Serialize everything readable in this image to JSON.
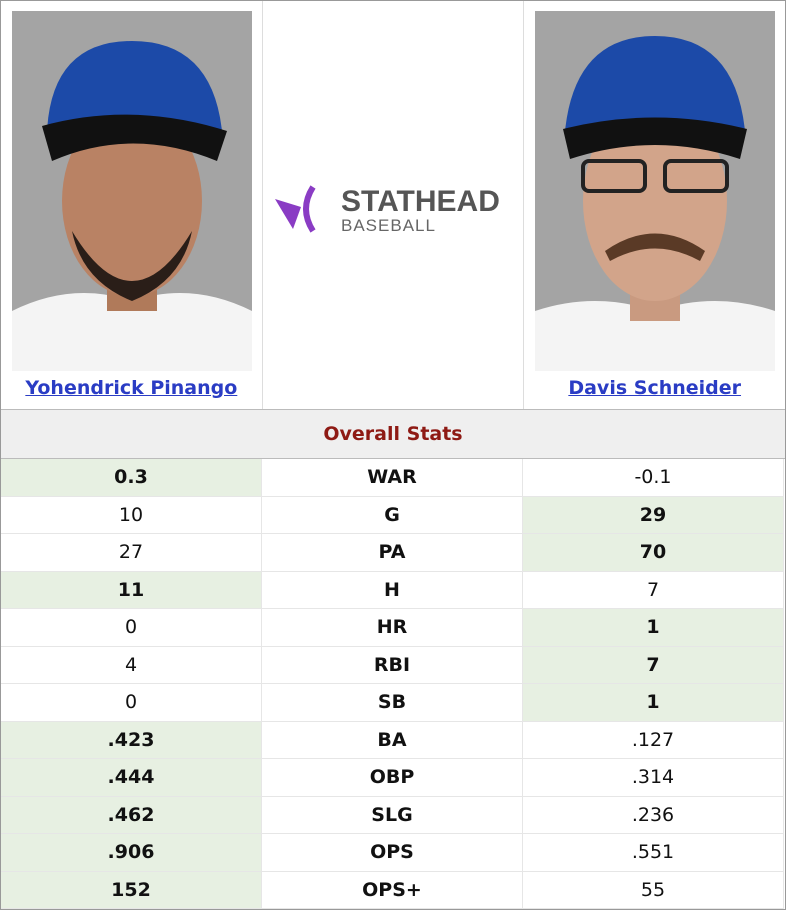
{
  "players": [
    {
      "name": "Yohendrick Pinango"
    },
    {
      "name": "Davis Schneider"
    }
  ],
  "logo": {
    "main": "STATHEAD",
    "sub": "BASEBALL"
  },
  "section_title": "Overall Stats",
  "rows": [
    {
      "left": "0.3",
      "stat": "WAR",
      "right": "-0.1",
      "leader": "left"
    },
    {
      "left": "10",
      "stat": "G",
      "right": "29",
      "leader": "right"
    },
    {
      "left": "27",
      "stat": "PA",
      "right": "70",
      "leader": "right"
    },
    {
      "left": "11",
      "stat": "H",
      "right": "7",
      "leader": "left"
    },
    {
      "left": "0",
      "stat": "HR",
      "right": "1",
      "leader": "right"
    },
    {
      "left": "4",
      "stat": "RBI",
      "right": "7",
      "leader": "right"
    },
    {
      "left": "0",
      "stat": "SB",
      "right": "1",
      "leader": "right"
    },
    {
      "left": ".423",
      "stat": "BA",
      "right": ".127",
      "leader": "left"
    },
    {
      "left": ".444",
      "stat": "OBP",
      "right": ".314",
      "leader": "left"
    },
    {
      "left": ".462",
      "stat": "SLG",
      "right": ".236",
      "leader": "left"
    },
    {
      "left": ".906",
      "stat": "OPS",
      "right": ".551",
      "leader": "left"
    },
    {
      "left": "152",
      "stat": "OPS+",
      "right": "55",
      "leader": "left"
    }
  ]
}
